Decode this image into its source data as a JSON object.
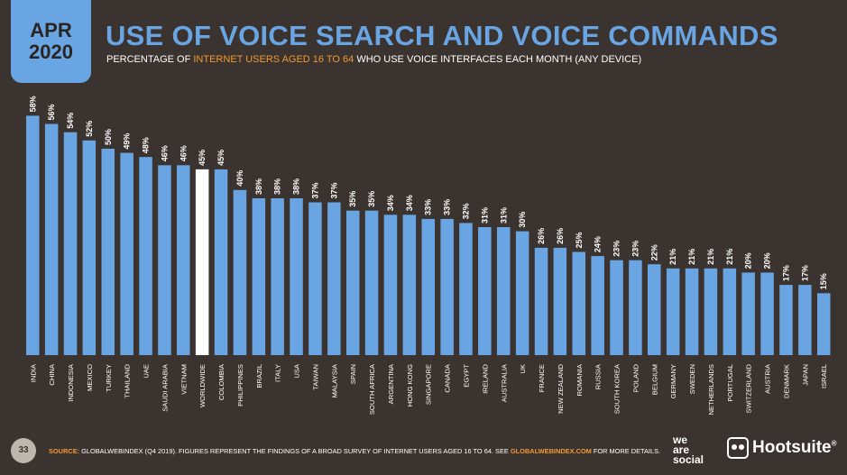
{
  "header": {
    "month": "APR",
    "year": "2020",
    "title": "USE OF VOICE SEARCH AND VOICE COMMANDS",
    "subtitle_pre": "PERCENTAGE OF ",
    "subtitle_highlight": "INTERNET USERS AGED 16 TO 64",
    "subtitle_post": " WHO USE VOICE INTERFACES EACH MONTH (ANY DEVICE)"
  },
  "footer": {
    "page_number": "33",
    "source_label": "SOURCE:",
    "source_text": " GLOBALWEBINDEX (Q4 2019). FIGURES REPRESENT THE FINDINGS OF A BROAD SURVEY OF INTERNET USERS AGED 16 TO 64. SEE ",
    "source_link": "GLOBALWEBINDEX.COM",
    "source_end": " FOR MORE DETAILS.",
    "brand_1_line1": "we",
    "brand_1_line2": "are",
    "brand_1_line3": "social",
    "brand_2": "Hootsuite",
    "brand_2_mark": "®"
  },
  "colors": {
    "background": "#3a332f",
    "bar": "#6aa5e3",
    "highlight_bar": "#ffffff",
    "accent": "#f29a32"
  },
  "chart_data": {
    "type": "bar",
    "categories": [
      "INDIA",
      "CHINA",
      "INDONESIA",
      "MEXICO",
      "TURKEY",
      "THAILAND",
      "UAE",
      "SAUDI ARABIA",
      "VIETNAM",
      "WORLDWIDE",
      "COLOMBIA",
      "PHILIPPINES",
      "BRAZIL",
      "ITALY",
      "USA",
      "TAIWAN",
      "MALAYSIA",
      "SPAIN",
      "SOUTH AFRICA",
      "ARGENTINA",
      "HONG KONG",
      "SINGAPORE",
      "CANADA",
      "EGYPT",
      "IRELAND",
      "AUSTRALIA",
      "UK",
      "FRANCE",
      "NEW ZEALAND",
      "ROMANIA",
      "RUSSIA",
      "SOUTH KOREA",
      "POLAND",
      "BELGIUM",
      "GERMANY",
      "SWEDEN",
      "NETHERLANDS",
      "PORTUGAL",
      "SWITZERLAND",
      "AUSTRIA",
      "DENMARK",
      "JAPAN",
      "ISRAEL"
    ],
    "values": [
      58,
      56,
      54,
      52,
      50,
      49,
      48,
      46,
      46,
      45,
      45,
      40,
      38,
      38,
      38,
      37,
      37,
      35,
      35,
      34,
      34,
      33,
      33,
      32,
      31,
      31,
      30,
      26,
      26,
      25,
      24,
      23,
      23,
      22,
      21,
      21,
      21,
      21,
      20,
      20,
      17,
      17,
      15
    ],
    "value_labels": [
      "58%",
      "56%",
      "54%",
      "52%",
      "50%",
      "49%",
      "48%",
      "46%",
      "46%",
      "45%",
      "45%",
      "40%",
      "38%",
      "38%",
      "38%",
      "37%",
      "37%",
      "35%",
      "35%",
      "34%",
      "34%",
      "33%",
      "33%",
      "32%",
      "31%",
      "31%",
      "30%",
      "26%",
      "26%",
      "25%",
      "24%",
      "23%",
      "23%",
      "22%",
      "21%",
      "21%",
      "21%",
      "21%",
      "20%",
      "20%",
      "17%",
      "17%",
      "15%"
    ],
    "highlight": "WORLDWIDE",
    "title": "USE OF VOICE SEARCH AND VOICE COMMANDS",
    "xlabel": "",
    "ylabel": "",
    "ylim": [
      0,
      60
    ],
    "grid": false,
    "legend": "none"
  }
}
